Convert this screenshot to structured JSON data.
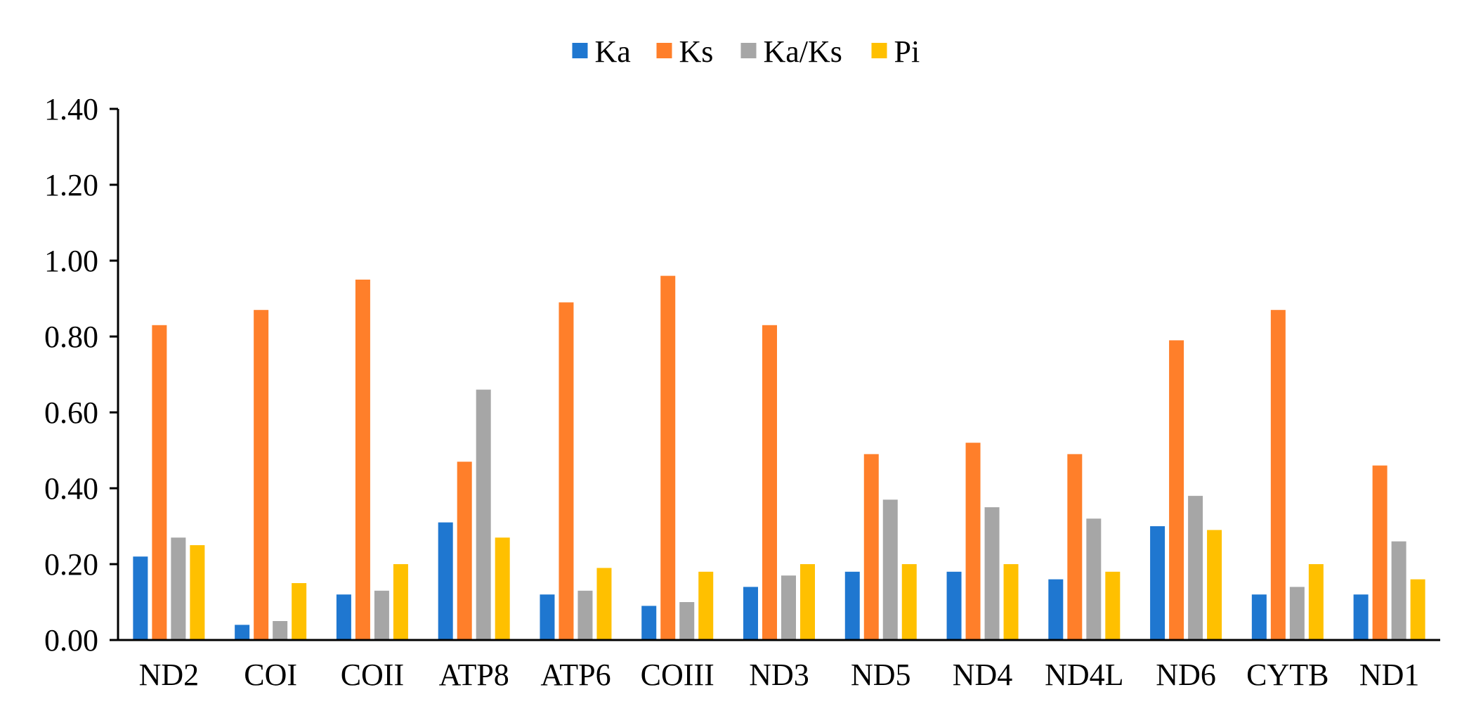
{
  "chart_data": {
    "type": "bar",
    "categories": [
      "ND2",
      "COI",
      "COII",
      "ATP8",
      "ATP6",
      "COIII",
      "ND3",
      "ND5",
      "ND4",
      "ND4L",
      "ND6",
      "CYTB",
      "ND1"
    ],
    "series": [
      {
        "name": "Ka",
        "color": "#1f77d0",
        "values": [
          0.22,
          0.04,
          0.12,
          0.31,
          0.12,
          0.09,
          0.14,
          0.18,
          0.18,
          0.16,
          0.3,
          0.12,
          0.12
        ]
      },
      {
        "name": "Ks",
        "color": "#ff7f2a",
        "values": [
          0.83,
          0.87,
          0.95,
          0.47,
          0.89,
          0.96,
          0.83,
          0.49,
          0.52,
          0.49,
          0.79,
          0.87,
          0.46
        ]
      },
      {
        "name": "Ka/Ks",
        "color": "#a6a6a6",
        "values": [
          0.27,
          0.05,
          0.13,
          0.66,
          0.13,
          0.1,
          0.17,
          0.37,
          0.35,
          0.32,
          0.38,
          0.14,
          0.26
        ]
      },
      {
        "name": "Pi",
        "color": "#ffc000",
        "values": [
          0.25,
          0.15,
          0.2,
          0.27,
          0.19,
          0.18,
          0.2,
          0.2,
          0.2,
          0.18,
          0.29,
          0.2,
          0.16
        ]
      }
    ],
    "yticks": [
      "0.00",
      "0.20",
      "0.40",
      "0.60",
      "0.80",
      "1.00",
      "1.20",
      "1.40"
    ],
    "ylim": [
      0,
      1.4
    ],
    "legend_position": "top-center",
    "grid": false
  }
}
